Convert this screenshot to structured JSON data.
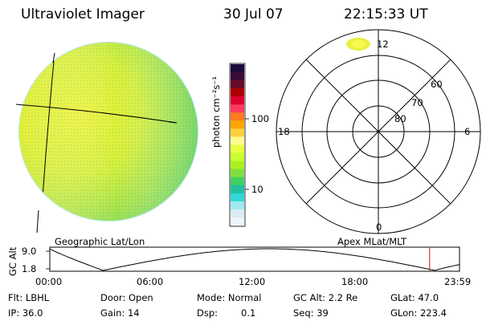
{
  "header": {
    "instrument": "Ultraviolet Imager",
    "date": "30 Jul 07",
    "time": "22:15:33 UT"
  },
  "colorbar": {
    "unit_label": "photon cm⁻²s⁻¹",
    "ticks": [
      "100",
      "10"
    ],
    "colors": [
      "#1a0a3a",
      "#3a0a3a",
      "#6a0a2a",
      "#b00000",
      "#e00030",
      "#ff3b5c",
      "#ff7a20",
      "#ffa500",
      "#ffd040",
      "#fffb90",
      "#e8ff40",
      "#c8ff30",
      "#a8f020",
      "#7ee040",
      "#40d060",
      "#20c0a0",
      "#30d8d8",
      "#a0e8f0",
      "#d8ecf4",
      "#eef4f8"
    ]
  },
  "polar": {
    "mlt_labels": {
      "top": "12",
      "left": "18",
      "right": "6",
      "bottom": "0"
    },
    "lat_labels": [
      "60",
      "70",
      "80"
    ]
  },
  "captions": {
    "left": "Geographic Lat/Lon",
    "right": "Apex MLat/MLT"
  },
  "orbit": {
    "ylabel": "GC Alt",
    "ymax": "9.0",
    "ymin": "1.8",
    "xticks": [
      "00:00",
      "06:00",
      "12:00",
      "18:00",
      "23:59"
    ],
    "current_time_fraction": 0.927
  },
  "info": {
    "row1": {
      "filter": "Flt: LBHL",
      "door": "Door: Open",
      "mode": "Mode: Normal",
      "gc_alt": "GC Alt: 2.2 Re",
      "glat": "GLat: 47.0"
    },
    "row2": {
      "ip": "IP: 36.0",
      "gain": "Gain: 14",
      "dsp_label": "Dsp:",
      "dsp_value": "0.1",
      "seq": "Seq: 39",
      "glon": "GLon: 223.4"
    }
  }
}
